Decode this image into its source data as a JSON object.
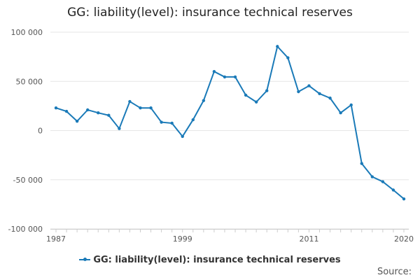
{
  "chart_data": {
    "type": "line",
    "title": "GG: liability(level): insurance technical reserves",
    "xlabel": "",
    "ylabel": "",
    "x": [
      1987,
      1988,
      1989,
      1990,
      1991,
      1992,
      1993,
      1994,
      1995,
      1996,
      1997,
      1998,
      1999,
      2000,
      2001,
      2002,
      2003,
      2004,
      2005,
      2006,
      2007,
      2008,
      2009,
      2010,
      2011,
      2012,
      2013,
      2014,
      2015,
      2016,
      2017,
      2018,
      2019,
      2020
    ],
    "series": [
      {
        "name": "GG: liability(level): insurance technical reserves",
        "color": "#1a7ab8",
        "values": [
          23000,
          19500,
          9500,
          21000,
          18000,
          15500,
          2000,
          29500,
          23000,
          23000,
          8500,
          7500,
          -6000,
          11000,
          30500,
          60000,
          54500,
          54500,
          36000,
          29000,
          40500,
          85500,
          74000,
          39500,
          45500,
          37500,
          33000,
          18000,
          26000,
          -33500,
          -47000,
          -52000,
          -60500,
          -69500
        ]
      }
    ],
    "ylim": [
      -100000,
      100000
    ],
    "yticks": [
      100000,
      50000,
      0,
      -50000,
      -100000
    ],
    "ytick_labels": [
      "100 000",
      "50 000",
      "0",
      "-50 000",
      "-100 000"
    ],
    "xlim": [
      1987,
      2020
    ],
    "xticks": [
      1987,
      1999,
      2011,
      2020
    ],
    "xtick_labels": [
      "1987",
      "1999",
      "2011",
      "2020"
    ],
    "grid": true,
    "legend_position": "bottom"
  },
  "legend": {
    "label": "GG: liability(level): insurance technical reserves"
  },
  "source_label": "Source:"
}
